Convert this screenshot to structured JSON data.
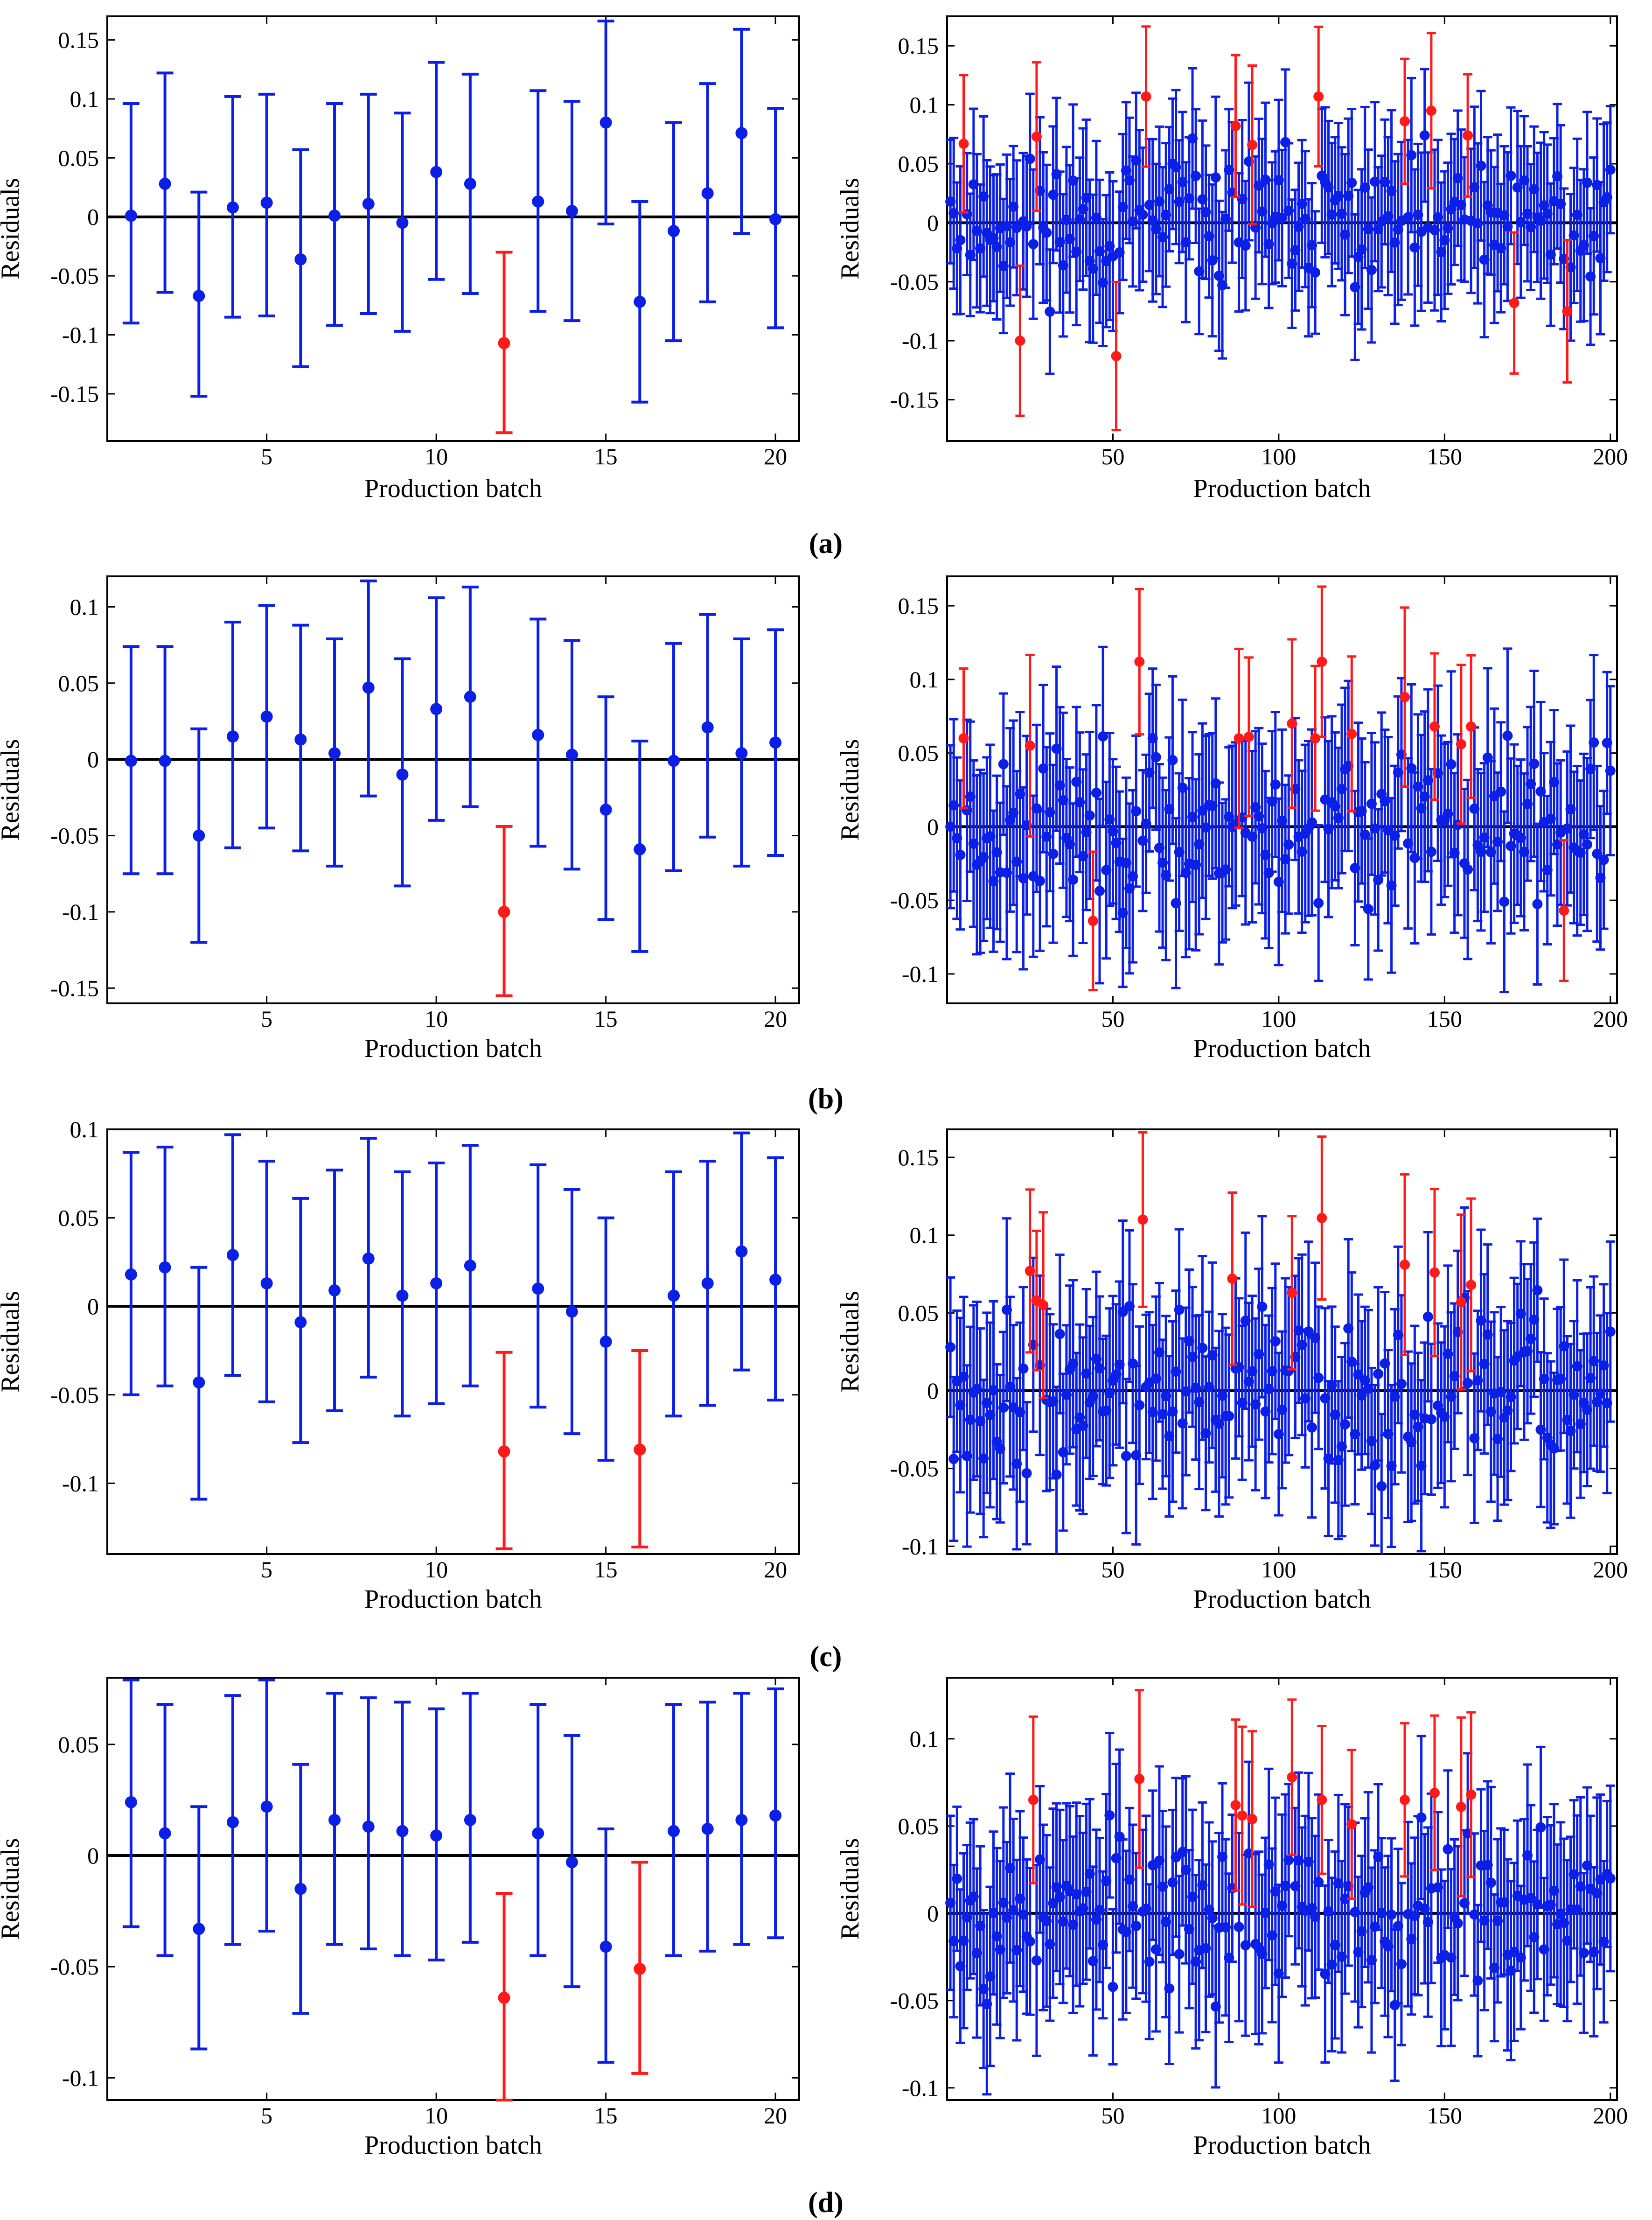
{
  "figure": {
    "panel_labels": [
      "(a)",
      "(b)",
      "(c)",
      "(d)"
    ],
    "colors": {
      "normal": "#0b1fe6",
      "outlier": "#ff1a1a",
      "axis": "#000000",
      "zero_line": "#000000"
    }
  },
  "chart_data": [
    {
      "id": "a-left",
      "panel": "a",
      "type": "errorbar-scatter",
      "xlabel": "Production batch",
      "ylabel": "Residuals",
      "xlim": [
        0.3,
        20.7
      ],
      "ylim": [
        -0.19,
        0.17
      ],
      "xticks": [
        5,
        10,
        15,
        20
      ],
      "xtick_labels": [
        "5",
        "10",
        "15",
        "20"
      ],
      "yticks": [
        -0.15,
        -0.1,
        -0.05,
        0,
        0.05,
        0.1,
        0.15
      ],
      "ytick_labels": [
        "-0.15",
        "-0.1",
        "-0.05",
        "0",
        "0.05",
        "0.1",
        "0.15"
      ],
      "x": [
        1,
        2,
        3,
        4,
        5,
        6,
        7,
        8,
        9,
        10,
        11,
        12,
        13,
        14,
        15,
        16,
        17,
        18,
        19,
        20
      ],
      "values": [
        0.001,
        0.028,
        -0.067,
        0.008,
        0.012,
        -0.036,
        0.001,
        0.011,
        -0.005,
        0.038,
        0.028,
        -0.107,
        0.013,
        0.005,
        0.08,
        -0.072,
        -0.012,
        0.02,
        0.071,
        -0.002
      ],
      "lower": [
        -0.09,
        -0.064,
        -0.152,
        -0.085,
        -0.084,
        -0.127,
        -0.092,
        -0.082,
        -0.097,
        -0.053,
        -0.065,
        -0.183,
        -0.08,
        -0.088,
        -0.006,
        -0.157,
        -0.105,
        -0.072,
        -0.014,
        -0.094
      ],
      "upper": [
        0.096,
        0.122,
        0.021,
        0.102,
        0.104,
        0.057,
        0.096,
        0.104,
        0.088,
        0.131,
        0.121,
        -0.03,
        0.107,
        0.098,
        0.166,
        0.013,
        0.08,
        0.113,
        0.159,
        0.092
      ],
      "outlier_x": [
        12
      ]
    },
    {
      "id": "a-right",
      "panel": "a",
      "type": "errorbar-scatter",
      "xlabel": "Production batch",
      "ylabel": "Residuals",
      "xlim": [
        0,
        202
      ],
      "ylim": [
        -0.185,
        0.175
      ],
      "xticks": [
        50,
        100,
        150,
        200
      ],
      "xtick_labels": [
        "50",
        "100",
        "150",
        "200"
      ],
      "yticks": [
        -0.15,
        -0.1,
        -0.05,
        0,
        0.05,
        0.1,
        0.15
      ],
      "ytick_labels": [
        "-0.15",
        "-0.1",
        "-0.05",
        "0",
        "0.05",
        "0.1",
        "0.15"
      ],
      "n_points": 200,
      "halfwidth": 0.06,
      "amplitude": 0.055,
      "seed": 11,
      "start": 0.018,
      "end": 0.045,
      "outliers": [
        [
          5,
          0.067
        ],
        [
          22,
          -0.1
        ],
        [
          27,
          0.073
        ],
        [
          51,
          -0.113
        ],
        [
          60,
          0.107
        ],
        [
          87,
          0.082
        ],
        [
          92,
          0.066
        ],
        [
          112,
          0.107
        ],
        [
          138,
          0.086
        ],
        [
          146,
          0.095
        ],
        [
          157,
          0.074
        ],
        [
          171,
          -0.068
        ],
        [
          187,
          -0.075
        ]
      ]
    },
    {
      "id": "b-left",
      "panel": "b",
      "type": "errorbar-scatter",
      "xlabel": "Production batch",
      "ylabel": "Residuals",
      "xlim": [
        0.3,
        20.7
      ],
      "ylim": [
        -0.16,
        0.12
      ],
      "xticks": [
        5,
        10,
        15,
        20
      ],
      "xtick_labels": [
        "5",
        "10",
        "15",
        "20"
      ],
      "yticks": [
        -0.15,
        -0.1,
        -0.05,
        0,
        0.05,
        0.1
      ],
      "ytick_labels": [
        "-0.15",
        "-0.1",
        "-0.05",
        "0",
        "0.05",
        "0.1"
      ],
      "x": [
        1,
        2,
        3,
        4,
        5,
        6,
        7,
        8,
        9,
        10,
        11,
        12,
        13,
        14,
        15,
        16,
        17,
        18,
        19,
        20
      ],
      "values": [
        -0.001,
        -0.001,
        -0.05,
        0.015,
        0.028,
        0.013,
        0.004,
        0.047,
        -0.01,
        0.033,
        0.041,
        -0.1,
        0.016,
        0.003,
        -0.033,
        -0.059,
        -0.001,
        0.021,
        0.004,
        0.011
      ],
      "lower": [
        -0.075,
        -0.075,
        -0.12,
        -0.058,
        -0.045,
        -0.06,
        -0.07,
        -0.024,
        -0.083,
        -0.04,
        -0.031,
        -0.155,
        -0.057,
        -0.072,
        -0.105,
        -0.126,
        -0.073,
        -0.051,
        -0.07,
        -0.063
      ],
      "upper": [
        0.074,
        0.074,
        0.02,
        0.09,
        0.101,
        0.088,
        0.079,
        0.117,
        0.066,
        0.106,
        0.113,
        -0.044,
        0.092,
        0.078,
        0.041,
        0.012,
        0.076,
        0.095,
        0.079,
        0.085
      ],
      "outlier_x": [
        12
      ]
    },
    {
      "id": "b-right",
      "panel": "b",
      "type": "errorbar-scatter",
      "xlabel": "Production batch",
      "ylabel": "Residuals",
      "xlim": [
        0,
        202
      ],
      "ylim": [
        -0.12,
        0.17
      ],
      "xticks": [
        50,
        100,
        150,
        200
      ],
      "xtick_labels": [
        "50",
        "100",
        "150",
        "200"
      ],
      "yticks": [
        -0.1,
        -0.05,
        0,
        0.05,
        0.1,
        0.15
      ],
      "ytick_labels": [
        "-0.1",
        "-0.05",
        "0",
        "0.05",
        "0.1",
        "0.15"
      ],
      "n_points": 200,
      "halfwidth": 0.055,
      "amplitude": 0.05,
      "seed": 23,
      "start": 0.0,
      "end": 0.038,
      "outliers": [
        [
          5,
          0.06
        ],
        [
          25,
          0.055
        ],
        [
          44,
          -0.064
        ],
        [
          58,
          0.112
        ],
        [
          88,
          0.06
        ],
        [
          91,
          0.061
        ],
        [
          104,
          0.07
        ],
        [
          111,
          0.06
        ],
        [
          113,
          0.112
        ],
        [
          122,
          0.063
        ],
        [
          138,
          0.088
        ],
        [
          147,
          0.068
        ],
        [
          155,
          0.056
        ],
        [
          158,
          0.068
        ],
        [
          186,
          -0.057
        ]
      ]
    },
    {
      "id": "c-left",
      "panel": "c",
      "type": "errorbar-scatter",
      "xlabel": "Production batch",
      "ylabel": "Residuals",
      "xlim": [
        0.3,
        20.7
      ],
      "ylim": [
        -0.14,
        0.1
      ],
      "xticks": [
        5,
        10,
        15,
        20
      ],
      "xtick_labels": [
        "5",
        "10",
        "15",
        "20"
      ],
      "yticks": [
        -0.1,
        -0.05,
        0,
        0.05,
        0.1
      ],
      "ytick_labels": [
        "-0.1",
        "-0.05",
        "0",
        "0.05",
        "0.1"
      ],
      "x": [
        1,
        2,
        3,
        4,
        5,
        6,
        7,
        8,
        9,
        10,
        11,
        12,
        13,
        14,
        15,
        16,
        17,
        18,
        19,
        20
      ],
      "values": [
        0.018,
        0.022,
        -0.043,
        0.029,
        0.013,
        -0.009,
        0.009,
        0.027,
        0.006,
        0.013,
        0.023,
        -0.082,
        0.01,
        -0.003,
        -0.02,
        -0.081,
        0.006,
        0.013,
        0.031,
        0.015
      ],
      "lower": [
        -0.05,
        -0.045,
        -0.109,
        -0.039,
        -0.054,
        -0.077,
        -0.059,
        -0.04,
        -0.062,
        -0.055,
        -0.045,
        -0.137,
        -0.057,
        -0.072,
        -0.087,
        -0.136,
        -0.062,
        -0.056,
        -0.036,
        -0.053
      ],
      "upper": [
        0.087,
        0.09,
        0.022,
        0.097,
        0.082,
        0.061,
        0.077,
        0.095,
        0.076,
        0.081,
        0.091,
        -0.026,
        0.08,
        0.066,
        0.05,
        -0.025,
        0.076,
        0.082,
        0.098,
        0.084
      ],
      "outlier_x": [
        12,
        16
      ]
    },
    {
      "id": "c-right",
      "panel": "c",
      "type": "errorbar-scatter",
      "xlabel": "Production batch",
      "ylabel": "Residuals",
      "xlim": [
        0,
        202
      ],
      "ylim": [
        -0.105,
        0.168
      ],
      "xticks": [
        50,
        100,
        150,
        200
      ],
      "xtick_labels": [
        "50",
        "100",
        "150",
        "200"
      ],
      "yticks": [
        -0.1,
        -0.05,
        0,
        0.05,
        0.1,
        0.15
      ],
      "ytick_labels": [
        "-0.1",
        "-0.05",
        "0",
        "0.05",
        "0.1",
        "0.15"
      ],
      "n_points": 200,
      "halfwidth": 0.052,
      "amplitude": 0.05,
      "seed": 37,
      "start": 0.028,
      "end": 0.038,
      "outliers": [
        [
          25,
          0.077
        ],
        [
          27,
          0.058
        ],
        [
          29,
          0.055
        ],
        [
          59,
          0.11
        ],
        [
          86,
          0.072
        ],
        [
          104,
          0.063
        ],
        [
          113,
          0.111
        ],
        [
          138,
          0.081
        ],
        [
          147,
          0.076
        ],
        [
          155,
          0.057
        ],
        [
          158,
          0.068
        ]
      ]
    },
    {
      "id": "d-left",
      "panel": "d",
      "type": "errorbar-scatter",
      "xlabel": "Production batch",
      "ylabel": "Residuals",
      "xlim": [
        0.3,
        20.7
      ],
      "ylim": [
        -0.11,
        0.08
      ],
      "xticks": [
        5,
        10,
        15,
        20
      ],
      "xtick_labels": [
        "5",
        "10",
        "15",
        "20"
      ],
      "yticks": [
        -0.1,
        -0.05,
        0,
        0.05
      ],
      "ytick_labels": [
        "-0.1",
        "-0.05",
        "0",
        "0.05"
      ],
      "x": [
        1,
        2,
        3,
        4,
        5,
        6,
        7,
        8,
        9,
        10,
        11,
        12,
        13,
        14,
        15,
        16,
        17,
        18,
        19,
        20
      ],
      "values": [
        0.024,
        0.01,
        -0.033,
        0.015,
        0.022,
        -0.015,
        0.016,
        0.013,
        0.011,
        0.009,
        0.016,
        -0.064,
        0.01,
        -0.003,
        -0.041,
        -0.051,
        0.011,
        0.012,
        0.016,
        0.018
      ],
      "lower": [
        -0.032,
        -0.045,
        -0.087,
        -0.04,
        -0.034,
        -0.071,
        -0.04,
        -0.042,
        -0.045,
        -0.047,
        -0.039,
        -0.11,
        -0.045,
        -0.059,
        -0.093,
        -0.098,
        -0.045,
        -0.043,
        -0.04,
        -0.037
      ],
      "upper": [
        0.079,
        0.068,
        0.022,
        0.072,
        0.079,
        0.041,
        0.073,
        0.071,
        0.069,
        0.066,
        0.073,
        -0.017,
        0.068,
        0.054,
        0.012,
        -0.003,
        0.068,
        0.069,
        0.073,
        0.075
      ],
      "outlier_x": [
        12,
        16
      ]
    },
    {
      "id": "d-right",
      "panel": "d",
      "type": "errorbar-scatter",
      "xlabel": "Production batch",
      "ylabel": "Residuals",
      "xlim": [
        0,
        202
      ],
      "ylim": [
        -0.107,
        0.135
      ],
      "xticks": [
        50,
        100,
        150,
        200
      ],
      "xtick_labels": [
        "50",
        "100",
        "150",
        "200"
      ],
      "yticks": [
        -0.1,
        -0.05,
        0,
        0.05,
        0.1
      ],
      "ytick_labels": [
        "-0.1",
        "-0.05",
        "0",
        "0.05",
        "0.1"
      ],
      "n_points": 200,
      "halfwidth": 0.048,
      "amplitude": 0.045,
      "seed": 53,
      "start": 0.006,
      "end": 0.02,
      "outliers": [
        [
          26,
          0.065
        ],
        [
          58,
          0.077
        ],
        [
          87,
          0.062
        ],
        [
          89,
          0.056
        ],
        [
          92,
          0.054
        ],
        [
          104,
          0.078
        ],
        [
          113,
          0.065
        ],
        [
          122,
          0.051
        ],
        [
          138,
          0.065
        ],
        [
          147,
          0.069
        ],
        [
          155,
          0.061
        ],
        [
          158,
          0.068
        ]
      ]
    }
  ]
}
